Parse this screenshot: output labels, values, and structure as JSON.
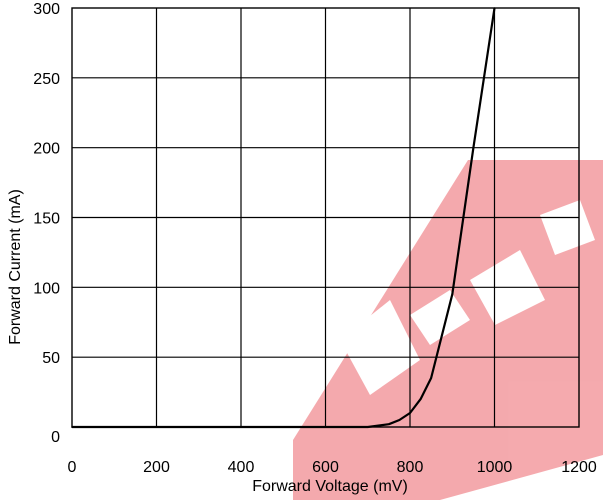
{
  "chart_data": {
    "type": "line",
    "title": "",
    "xlabel": "Forward Voltage (mV)",
    "ylabel": "Forward Current (mA)",
    "xlim": [
      0,
      1200
    ],
    "ylim": [
      0,
      300
    ],
    "x_ticks": [
      "0",
      "200",
      "400",
      "600",
      "800",
      "1000",
      "1200"
    ],
    "y_ticks": [
      "0",
      "50",
      "100",
      "150",
      "200",
      "250",
      "300"
    ],
    "grid": true,
    "series": [
      {
        "x": [
          0,
          700,
          750,
          775,
          800,
          825,
          850,
          900,
          950,
          1000
        ],
        "y": [
          0,
          0,
          2,
          5,
          10,
          20,
          35,
          95,
          200,
          300
        ]
      }
    ],
    "colors": {
      "line": "#000000",
      "grid": "#000000",
      "watermark": "#e8434b"
    }
  }
}
